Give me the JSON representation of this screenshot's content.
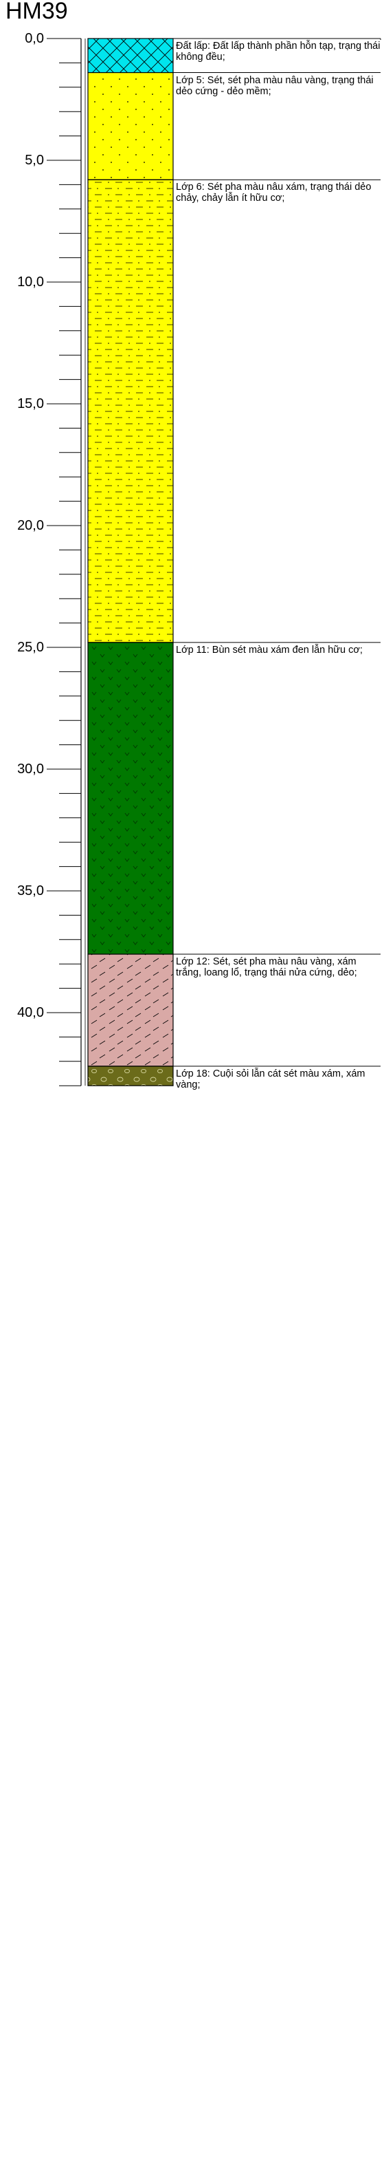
{
  "borehole": {
    "title": "HM39"
  },
  "depth_axis": {
    "labels": [
      "0,0",
      "5,0",
      "10,0",
      "15,0",
      "20,0",
      "25,0",
      "30,0",
      "35,0",
      "40,0"
    ],
    "major_step": 5,
    "minor_step": 1,
    "max": 43
  },
  "layers": [
    {
      "top": 0.0,
      "bottom": 1.4,
      "pattern": "hatch",
      "color": "#00E5EE",
      "description": "Đất lấp: Đất lấp thành phần hỗn tạp, trạng thái không đều;"
    },
    {
      "top": 1.4,
      "bottom": 5.8,
      "pattern": "dots",
      "color": "#FFFF00",
      "description": "Lớp 5: Sét, sét pha màu nâu vàng, trạng thái dẻo cứng - dẻo mềm;"
    },
    {
      "top": 5.8,
      "bottom": 24.8,
      "pattern": "dots-dashes",
      "color": "#FFFF00",
      "description": "Lớp 6: Sét pha màu nâu xám, trạng thái dẻo chảy, chảy lẫn ít hữu cơ;"
    },
    {
      "top": 24.8,
      "bottom": 37.6,
      "pattern": "organic",
      "color": "#007800",
      "description": "Lớp 11: Bùn sét màu xám đen lẫn hữu cơ;"
    },
    {
      "top": 37.6,
      "bottom": 42.2,
      "pattern": "slashes",
      "color": "#D9A9A6",
      "description": "Lớp 12: Sét, sét pha màu nâu vàng, xám trắng, loang lổ, trạng thái nửa cứng, dẻo;"
    },
    {
      "top": 42.2,
      "bottom": 43.0,
      "pattern": "gravel",
      "color": "#6B6B1A",
      "description": "Lớp 18: Cuội sỏi lẫn cát sét màu xám, xám vàng;"
    }
  ]
}
